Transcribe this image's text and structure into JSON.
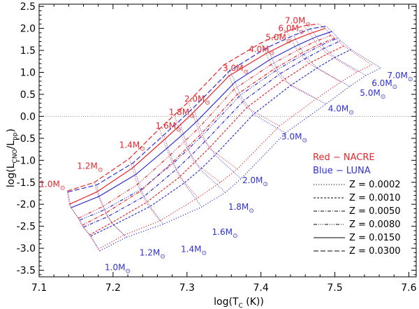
{
  "chart_data": {
    "type": "line",
    "title": "",
    "xlabel_main": "log(T",
    "xlabel_sub": "C",
    "xlabel_tail": " (K))",
    "ylabel_main": "log(L",
    "ylabel_sub1": "CNO",
    "ylabel_mid": "/L",
    "ylabel_sub2": "pp",
    "ylabel_tail": ")",
    "xlim": [
      7.1,
      7.61
    ],
    "ylim": [
      -3.65,
      2.55
    ],
    "xticks": [
      7.1,
      7.2,
      7.3,
      7.4,
      7.5,
      7.6
    ],
    "xtick_labels": [
      "7.1",
      "7.2",
      "7.3",
      "7.4",
      "7.5",
      "7.6"
    ],
    "yticks": [
      2.5,
      2.0,
      1.5,
      1.0,
      0.5,
      0.0,
      -0.5,
      -1.0,
      -1.5,
      -2.0,
      -2.5,
      -3.0,
      -3.5
    ],
    "ytick_labels": [
      "2.5",
      "2.0",
      "1.5",
      "1.0",
      "0.5",
      "0.0",
      "-0.5",
      "-1.0",
      "-1.5",
      "-2.0",
      "-2.5",
      "-3.0",
      "-3.5"
    ],
    "reference_line_y": 0.0,
    "colors": {
      "red": "#e8262b",
      "blue": "#2f2fd6",
      "axis": "#000000"
    },
    "masses_red": [
      {
        "label": "1.0M",
        "x": 7.141,
        "y": -1.69
      },
      {
        "label": "1.2M",
        "x": 7.192,
        "y": -1.27
      },
      {
        "label": "1.4M",
        "x": 7.249,
        "y": -0.8
      },
      {
        "label": "1.6M",
        "x": 7.298,
        "y": -0.36
      },
      {
        "label": "1.8M",
        "x": 7.316,
        "y": -0.05
      },
      {
        "label": "2.0M",
        "x": 7.337,
        "y": 0.25
      },
      {
        "label": "3.0M",
        "x": 7.389,
        "y": 0.95
      },
      {
        "label": "4.0M",
        "x": 7.424,
        "y": 1.38
      },
      {
        "label": "5.0M",
        "x": 7.447,
        "y": 1.65
      },
      {
        "label": "6.0M",
        "x": 7.464,
        "y": 1.86
      },
      {
        "label": "7.0M",
        "x": 7.473,
        "y": 2.03
      }
    ],
    "masses_blue": [
      {
        "label": "1.0M",
        "x": 7.185,
        "y": -3.28
      },
      {
        "label": "1.2M",
        "x": 7.232,
        "y": -2.94
      },
      {
        "label": "1.4M",
        "x": 7.288,
        "y": -2.86
      },
      {
        "label": "1.6M",
        "x": 7.33,
        "y": -2.47
      },
      {
        "label": "1.8M",
        "x": 7.352,
        "y": -1.9
      },
      {
        "label": "2.0M",
        "x": 7.371,
        "y": -1.3
      },
      {
        "label": "3.0M",
        "x": 7.424,
        "y": -0.3
      },
      {
        "label": "4.0M",
        "x": 7.487,
        "y": 0.33
      },
      {
        "label": "5.0M",
        "x": 7.53,
        "y": 0.69
      },
      {
        "label": "6.0M",
        "x": 7.546,
        "y": 0.91
      },
      {
        "label": "7.0M",
        "x": 7.567,
        "y": 1.09
      }
    ],
    "series": [
      {
        "name": "NACRE Z = 0.0002",
        "color": "red",
        "dash": "1.2 2.4",
        "x": [
          7.18,
          7.215,
          7.263,
          7.315,
          7.345,
          7.368,
          7.425,
          7.475,
          7.508,
          7.53,
          7.55
        ],
        "y": [
          -3.02,
          -2.7,
          -2.38,
          -1.85,
          -1.5,
          -1.2,
          -0.22,
          0.4,
          0.78,
          1.01,
          1.17
        ]
      },
      {
        "name": "LUNA Z = 0.0002",
        "color": "blue",
        "dash": "1.2 2.4",
        "x": [
          7.182,
          7.218,
          7.268,
          7.32,
          7.352,
          7.373,
          7.433,
          7.488,
          7.52,
          7.542,
          7.562
        ],
        "y": [
          -3.06,
          -2.75,
          -2.45,
          -2.06,
          -1.73,
          -1.42,
          -0.38,
          0.28,
          0.68,
          0.93,
          1.1
        ]
      },
      {
        "name": "NACRE Z = 0.0010",
        "color": "red",
        "dash": "3 2",
        "x": [
          7.168,
          7.198,
          7.245,
          7.29,
          7.31,
          7.33,
          7.381,
          7.43,
          7.465,
          7.49,
          7.512
        ],
        "y": [
          -2.7,
          -2.42,
          -1.96,
          -1.38,
          -1.05,
          -0.72,
          0.2,
          0.82,
          1.2,
          1.42,
          1.6
        ]
      },
      {
        "name": "LUNA Z = 0.0010",
        "color": "blue",
        "dash": "3 2",
        "x": [
          7.17,
          7.201,
          7.25,
          7.296,
          7.318,
          7.338,
          7.39,
          7.44,
          7.476,
          7.5,
          7.522
        ],
        "y": [
          -2.72,
          -2.47,
          -2.05,
          -1.52,
          -1.21,
          -0.88,
          0.05,
          0.7,
          1.1,
          1.34,
          1.52
        ]
      },
      {
        "name": "NACRE Z = 0.0050",
        "color": "red",
        "dash": "5 2 1 2",
        "x": [
          7.158,
          7.19,
          7.237,
          7.28,
          7.3,
          7.318,
          7.368,
          7.418,
          7.453,
          7.477,
          7.5
        ],
        "y": [
          -2.48,
          -2.2,
          -1.7,
          -1.05,
          -0.72,
          -0.42,
          0.5,
          1.08,
          1.42,
          1.62,
          1.78
        ]
      },
      {
        "name": "LUNA Z = 0.0050",
        "color": "blue",
        "dash": "5 2 1 2",
        "x": [
          7.16,
          7.193,
          7.242,
          7.286,
          7.306,
          7.325,
          7.377,
          7.426,
          7.462,
          7.486,
          7.508
        ],
        "y": [
          -2.52,
          -2.28,
          -1.82,
          -1.2,
          -0.88,
          -0.56,
          0.36,
          0.97,
          1.33,
          1.55,
          1.72
        ]
      },
      {
        "name": "NACRE Z = 0.0080",
        "color": "red",
        "dash": "5 2 1 2 1 2 1 2",
        "x": [
          7.153,
          7.186,
          7.233,
          7.276,
          7.296,
          7.315,
          7.364,
          7.414,
          7.449,
          7.473,
          7.495
        ],
        "y": [
          -2.32,
          -2.05,
          -1.55,
          -0.9,
          -0.58,
          -0.28,
          0.62,
          1.18,
          1.5,
          1.7,
          1.84
        ]
      },
      {
        "name": "LUNA Z = 0.0080",
        "color": "blue",
        "dash": "5 2 1 2 1 2 1 2",
        "x": [
          7.155,
          7.189,
          7.238,
          7.282,
          7.302,
          7.321,
          7.372,
          7.422,
          7.458,
          7.482,
          7.504
        ],
        "y": [
          -2.36,
          -2.12,
          -1.66,
          -1.06,
          -0.74,
          -0.43,
          0.48,
          1.06,
          1.41,
          1.62,
          1.78
        ]
      },
      {
        "name": "NACRE Z = 0.0150",
        "color": "red",
        "dash": "",
        "x": [
          7.141,
          7.178,
          7.226,
          7.268,
          7.288,
          7.307,
          7.357,
          7.407,
          7.442,
          7.466,
          7.487
        ],
        "y": [
          -2.0,
          -1.72,
          -1.18,
          -0.55,
          -0.24,
          0.06,
          0.92,
          1.43,
          1.72,
          1.88,
          2.0
        ]
      },
      {
        "name": "LUNA Z = 0.0150",
        "color": "blue",
        "dash": "",
        "x": [
          7.143,
          7.181,
          7.231,
          7.274,
          7.295,
          7.314,
          7.365,
          7.415,
          7.451,
          7.475,
          7.496
        ],
        "y": [
          -2.08,
          -1.82,
          -1.32,
          -0.71,
          -0.4,
          -0.1,
          0.78,
          1.32,
          1.63,
          1.81,
          1.93
        ]
      },
      {
        "name": "NACRE Z = 0.0300",
        "color": "red",
        "dash": "7 3",
        "x": [
          7.138,
          7.175,
          7.222,
          7.263,
          7.283,
          7.302,
          7.35,
          7.4,
          7.435,
          7.458,
          7.478
        ],
        "y": [
          -1.7,
          -1.5,
          -0.96,
          -0.28,
          0.03,
          0.33,
          1.17,
          1.67,
          1.93,
          2.06,
          2.1
        ]
      },
      {
        "name": "LUNA Z = 0.0300",
        "color": "blue",
        "dash": "7 3",
        "x": [
          7.139,
          7.178,
          7.227,
          7.269,
          7.29,
          7.309,
          7.358,
          7.408,
          7.444,
          7.467,
          7.488
        ],
        "y": [
          -1.72,
          -1.56,
          -1.06,
          -0.42,
          -0.1,
          0.2,
          1.04,
          1.56,
          1.84,
          1.99,
          2.05
        ]
      }
    ],
    "legend": {
      "placement": "bottom-right",
      "red_label": "Red − NACRE",
      "blue_label": "Blue − LUNA",
      "entries": [
        {
          "label": "Z = 0.0002",
          "dash": "1.2 2.4"
        },
        {
          "label": "Z = 0.0010",
          "dash": "3 2"
        },
        {
          "label": "Z = 0.0050",
          "dash": "5 2 1 2"
        },
        {
          "label": "Z = 0.0080",
          "dash": "5 2 1 2 1 2 1 2"
        },
        {
          "label": "Z = 0.0150",
          "dash": ""
        },
        {
          "label": "Z = 0.0300",
          "dash": "7 3"
        }
      ]
    }
  }
}
